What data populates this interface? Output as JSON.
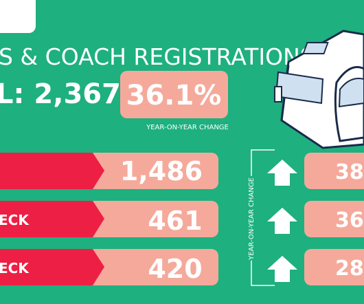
{
  "header": {
    "title": "S & COACH REGISTRATIONS",
    "total": "L: 2,367",
    "change": "36.1%",
    "change_label": "YEAR-ON-YEAR CHANGE"
  },
  "rows": [
    {
      "label": "",
      "value": "1,486",
      "change": "38"
    },
    {
      "label": "ECK",
      "value": "461",
      "change": "36."
    },
    {
      "label": "ECK",
      "value": "420",
      "change": "28."
    }
  ],
  "side_label": "YEAR-ON-YEAR CHANGE"
}
